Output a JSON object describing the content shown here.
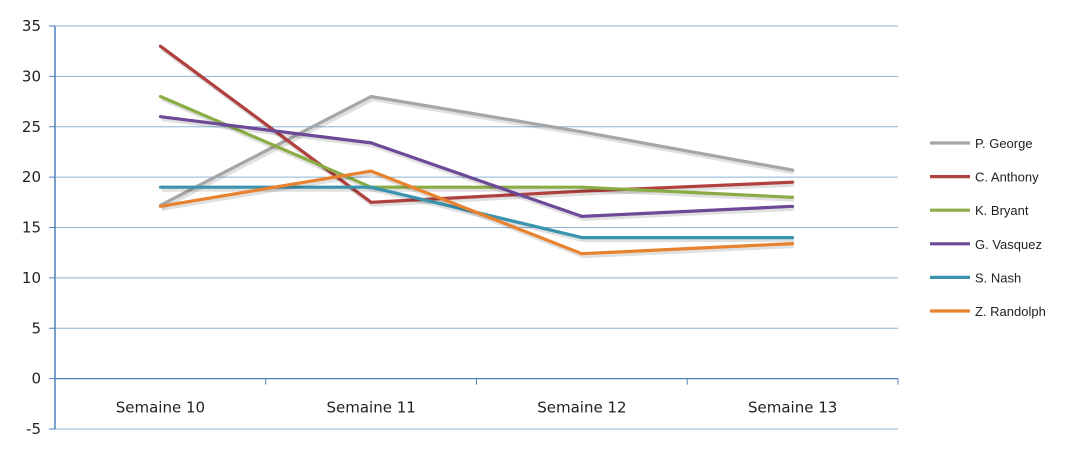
{
  "chart_data": {
    "type": "line",
    "categories": [
      "Semaine 10",
      "Semaine 11",
      "Semaine 12",
      "Semaine 13"
    ],
    "ylim": [
      -5,
      35
    ],
    "yticks": [
      -5,
      0,
      5,
      10,
      15,
      20,
      25,
      30,
      35
    ],
    "grid": true,
    "legend_position": "right",
    "series": [
      {
        "name": "P. George",
        "color": "#a6a6a6",
        "values": [
          17.2,
          28.0,
          24.5,
          20.7
        ]
      },
      {
        "name": "C. Anthony",
        "color": "#b0413e",
        "values": [
          33.0,
          17.5,
          18.6,
          19.5
        ]
      },
      {
        "name": "K. Bryant",
        "color": "#8aac45",
        "values": [
          28.0,
          19.0,
          19.0,
          18.0
        ]
      },
      {
        "name": "G. Vasquez",
        "color": "#6c4a98",
        "values": [
          26.0,
          23.4,
          16.1,
          17.1
        ]
      },
      {
        "name": "S. Nash",
        "color": "#3b93ad",
        "values": [
          19.0,
          19.0,
          14.0,
          14.0
        ]
      },
      {
        "name": "Z. Randolph",
        "color": "#e8822f",
        "values": [
          17.1,
          20.6,
          12.4,
          13.4
        ]
      }
    ]
  }
}
